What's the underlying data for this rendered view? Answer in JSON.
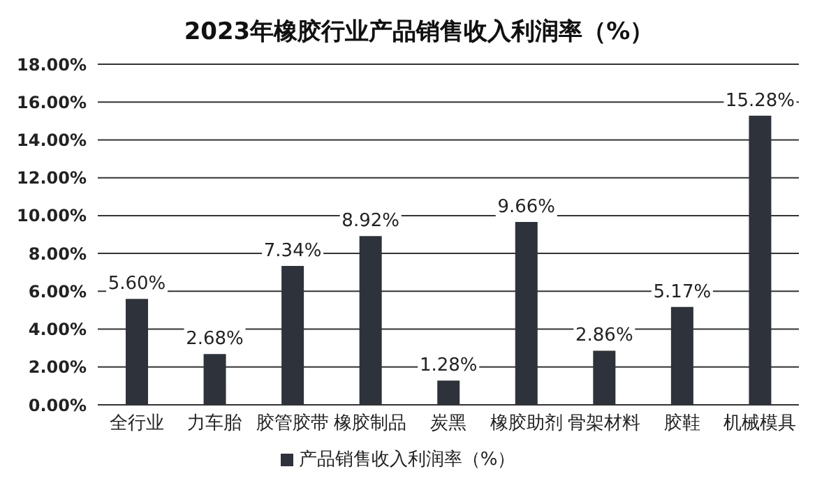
{
  "chart_data": {
    "type": "bar",
    "title": "2023年橡胶行业产品销售收入利润率（%）",
    "categories": [
      "全行业",
      "力车胎",
      "胶管胶带",
      "橡胶制品",
      "炭黑",
      "橡胶助剂",
      "骨架材料",
      "胶鞋",
      "机械模具"
    ],
    "series": [
      {
        "name": "产品销售收入利润率（%）",
        "color": "#2e323a",
        "values": [
          5.6,
          2.68,
          7.34,
          8.92,
          1.28,
          9.66,
          2.86,
          5.17,
          15.28
        ],
        "value_labels": [
          "5.60%",
          "2.68%",
          "7.34%",
          "8.92%",
          "1.28%",
          "9.66%",
          "2.86%",
          "5.17%",
          "15.28%"
        ]
      }
    ],
    "ylim": [
      0,
      18
    ],
    "yticks": [
      {
        "value": 0,
        "label": "0.00%"
      },
      {
        "value": 2,
        "label": "2.00%"
      },
      {
        "value": 4,
        "label": "4.00%"
      },
      {
        "value": 6,
        "label": "6.00%"
      },
      {
        "value": 8,
        "label": "8.00%"
      },
      {
        "value": 10,
        "label": "10.00%"
      },
      {
        "value": 12,
        "label": "12.00%"
      },
      {
        "value": 14,
        "label": "14.00%"
      },
      {
        "value": 16,
        "label": "16.00%"
      },
      {
        "value": 18,
        "label": "18.00%"
      }
    ],
    "grid": "y",
    "legend": "bottom"
  }
}
